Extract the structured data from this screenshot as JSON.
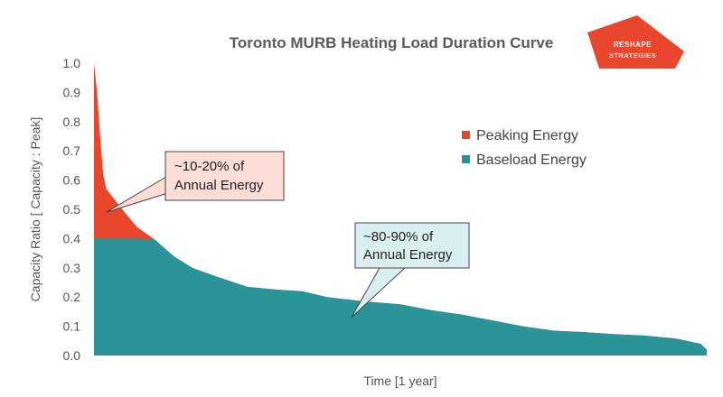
{
  "chart_data": {
    "type": "area",
    "title": "Toronto MURB Heating Load Duration Curve",
    "xlabel": "Time [1 year]",
    "ylabel": "Capacity Ratio [ Capacity : Peak]",
    "ylim": [
      0,
      1.0
    ],
    "yticks": [
      "0.0",
      "0.1",
      "0.2",
      "0.3",
      "0.4",
      "0.5",
      "0.6",
      "0.7",
      "0.8",
      "0.9",
      "1.0"
    ],
    "xlim": [
      0,
      1
    ],
    "baseload_cap": 0.4,
    "load_curve": {
      "x": [
        0,
        0.005,
        0.01,
        0.015,
        0.02,
        0.05,
        0.07,
        0.1,
        0.13,
        0.16,
        0.2,
        0.25,
        0.3,
        0.34,
        0.38,
        0.4,
        0.44,
        0.5,
        0.55,
        0.6,
        0.65,
        0.7,
        0.75,
        0.8,
        0.85,
        0.9,
        0.95,
        0.99,
        1.0
      ],
      "y": [
        1.0,
        0.9,
        0.75,
        0.62,
        0.57,
        0.49,
        0.44,
        0.395,
        0.34,
        0.3,
        0.27,
        0.235,
        0.225,
        0.22,
        0.2,
        0.195,
        0.185,
        0.175,
        0.155,
        0.14,
        0.12,
        0.1,
        0.085,
        0.08,
        0.073,
        0.068,
        0.058,
        0.04,
        0.02
      ]
    },
    "series": [
      {
        "name": "Peaking Energy",
        "color": "#e8472e"
      },
      {
        "name": "Baseload Energy",
        "color": "#2a9499"
      }
    ],
    "legend_position": "right",
    "annotations": [
      {
        "id": "peaking",
        "lines": [
          "~10-20% of",
          "Annual Energy"
        ],
        "target": [
          0.02,
          0.49
        ],
        "fill": "#fbdcd6"
      },
      {
        "id": "baseload",
        "lines": [
          "~80-90% of",
          "Annual Energy"
        ],
        "target": [
          0.42,
          0.13
        ],
        "fill": "#dbeeef"
      }
    ]
  },
  "logo": {
    "line1": "RESHAPE",
    "line2": "STRATEGIES",
    "color": "#e8472e"
  }
}
